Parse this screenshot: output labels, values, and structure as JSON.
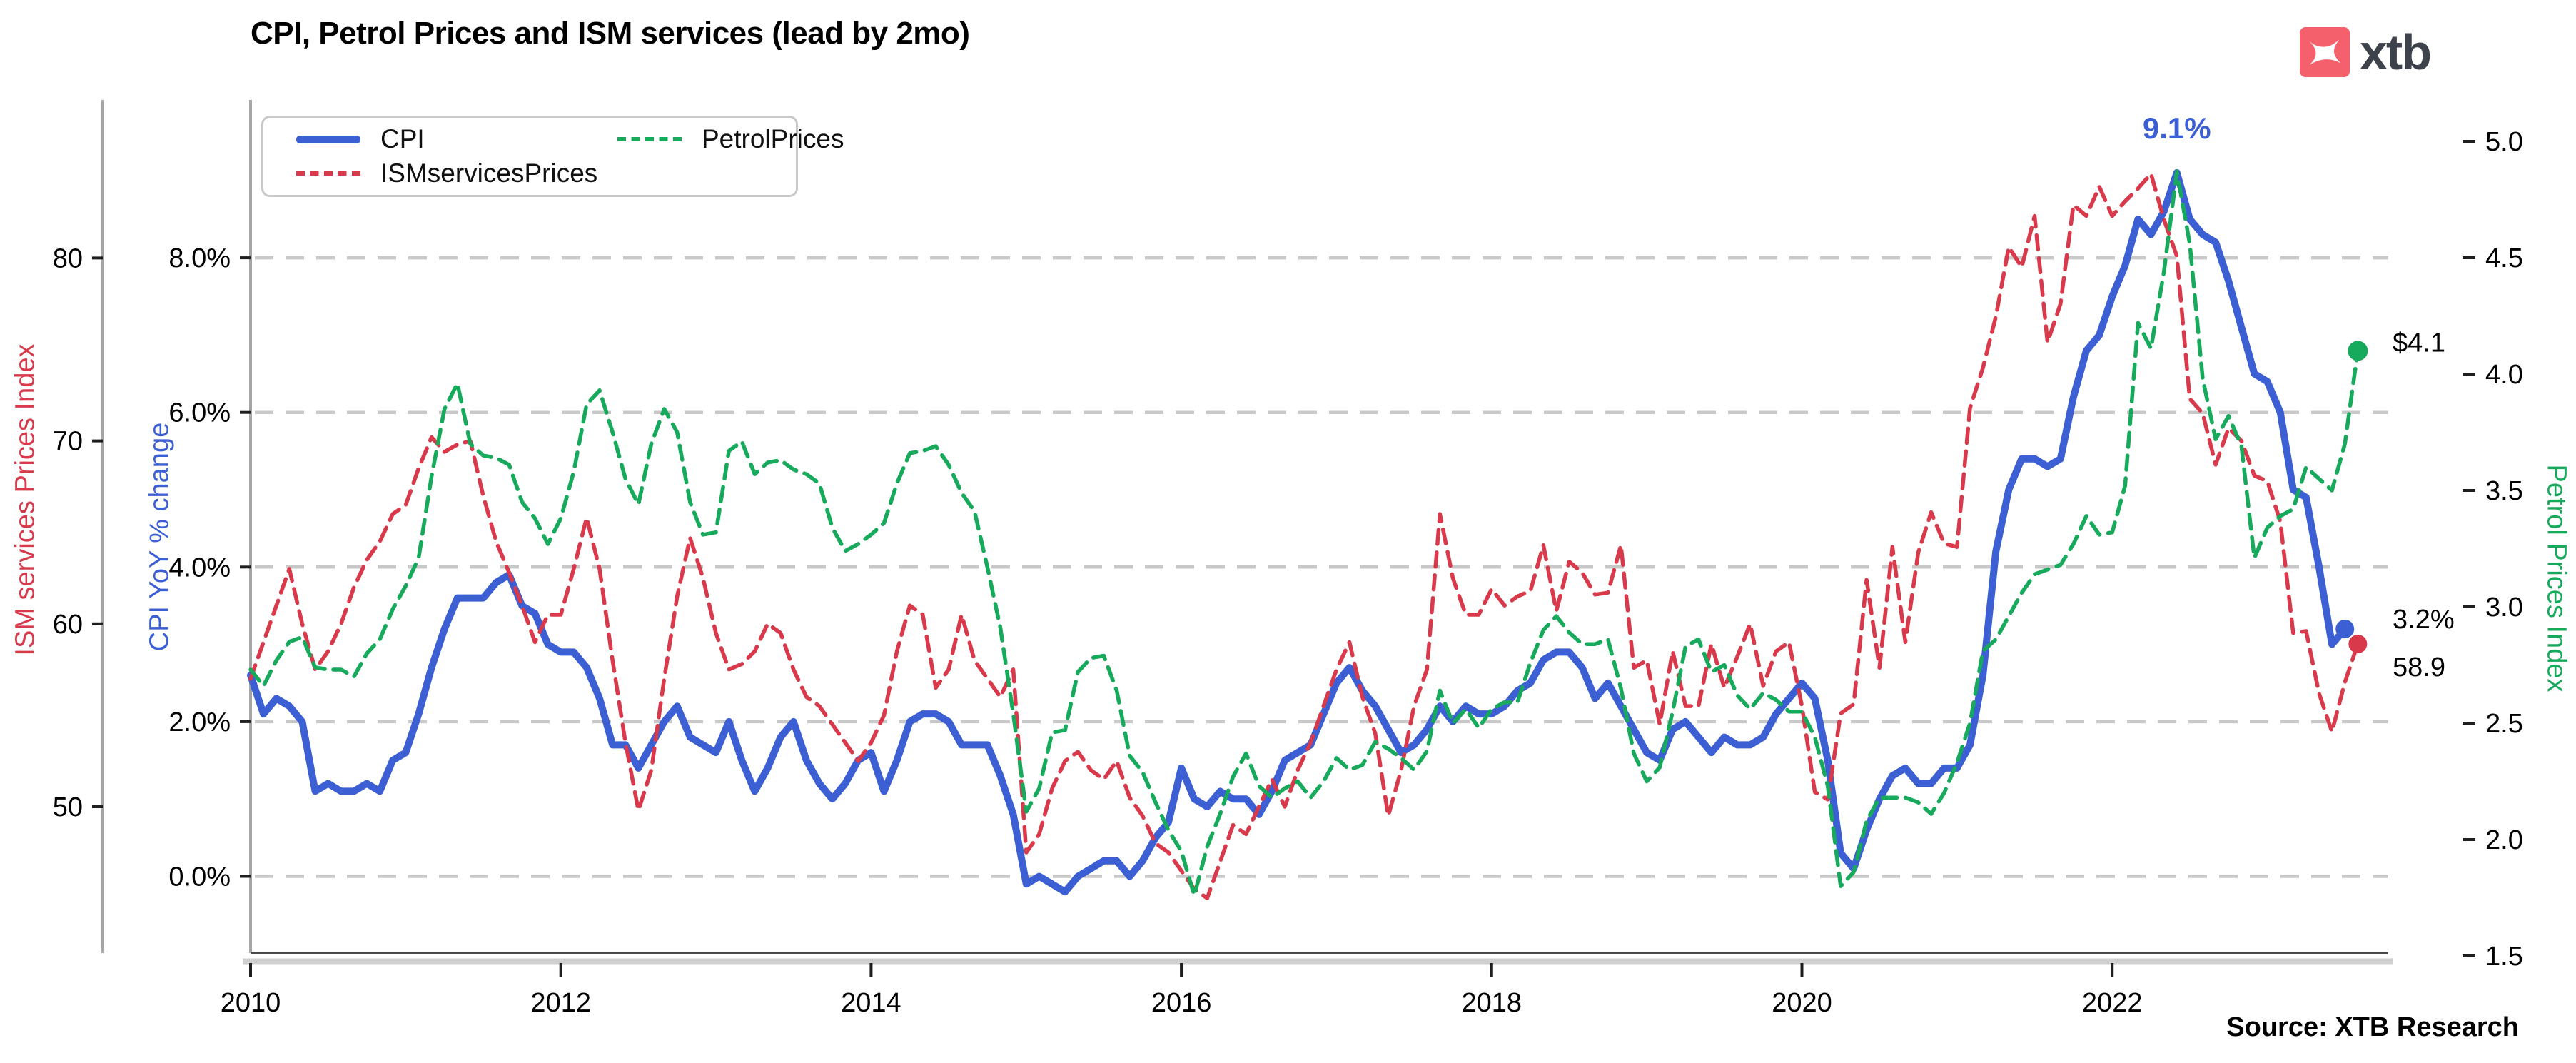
{
  "title": "CPI, Petrol Prices and ISM services (lead by 2mo)",
  "logo": {
    "text": "xtb",
    "square_color": "#F4606B",
    "text_color": "#3E434B"
  },
  "source_note": "Source: XTB Research",
  "colors": {
    "cpi": "#3C5FD3",
    "ism": "#D83A4C",
    "petrol": "#17A95C",
    "grid": "#C8C8C8",
    "spine": "#A6A6A6",
    "spine_bottom_dark": "#4A4A4A",
    "spine_bottom_light": "#CFCFCF",
    "tick": "#1F1F1F",
    "tick_label": "#000000"
  },
  "legend": {
    "items": [
      {
        "label": "CPI",
        "series": "cpi",
        "dashed": false
      },
      {
        "label": "ISMservicesPrices",
        "series": "ism",
        "dashed": true
      },
      {
        "label": "PetrolPrices",
        "series": "petrol",
        "dashed": true
      }
    ]
  },
  "annotations": {
    "cpi_peak": "9.1%",
    "petrol_end": "$4.1",
    "cpi_end": "3.2%",
    "ism_end": "58.9"
  },
  "chart_data": {
    "type": "line",
    "start": "2010-01",
    "frequency": "monthly",
    "x_axis": {
      "tick_labels": [
        "2010",
        "2012",
        "2014",
        "2016",
        "2018",
        "2020",
        "2022"
      ],
      "tick_years": [
        2010,
        2012,
        2014,
        2016,
        2018,
        2020,
        2022
      ]
    },
    "axes": {
      "cpi": {
        "label": "CPI YoY % change",
        "side": "left",
        "tick_labels": [
          "8.0%",
          "6.0%",
          "4.0%",
          "2.0%",
          "0.0%"
        ],
        "tick_values": [
          8,
          6,
          4,
          2,
          0
        ],
        "grid": true
      },
      "ism": {
        "label": "ISM services Prices Index",
        "side": "far-left",
        "tick_labels": [
          "80",
          "70",
          "60",
          "50"
        ],
        "tick_values": [
          80,
          70,
          60,
          50
        ],
        "grid": false
      },
      "petrol": {
        "label": "Petrol Prices Index",
        "side": "right",
        "tick_labels": [
          "5.0",
          "4.5",
          "4.0",
          "3.5",
          "3.0",
          "2.5",
          "2.0",
          "1.5"
        ],
        "tick_values": [
          5.0,
          4.5,
          4.0,
          3.5,
          3.0,
          2.5,
          2.0,
          1.5
        ],
        "grid": false
      }
    },
    "series": [
      {
        "name": "CPI",
        "axis": "cpi",
        "style": "solid",
        "end_dot": true,
        "values": [
          2.6,
          2.1,
          2.3,
          2.2,
          2.0,
          1.1,
          1.2,
          1.1,
          1.1,
          1.2,
          1.1,
          1.5,
          1.6,
          2.1,
          2.7,
          3.2,
          3.6,
          3.6,
          3.6,
          3.8,
          3.9,
          3.5,
          3.4,
          3.0,
          2.9,
          2.9,
          2.7,
          2.3,
          1.7,
          1.7,
          1.4,
          1.7,
          2.0,
          2.2,
          1.8,
          1.7,
          1.6,
          2.0,
          1.5,
          1.1,
          1.4,
          1.8,
          2.0,
          1.5,
          1.2,
          1.0,
          1.2,
          1.5,
          1.6,
          1.1,
          1.5,
          2.0,
          2.1,
          2.1,
          2.0,
          1.7,
          1.7,
          1.7,
          1.3,
          0.8,
          -0.1,
          0.0,
          -0.1,
          -0.2,
          0.0,
          0.1,
          0.2,
          0.2,
          0.0,
          0.2,
          0.5,
          0.7,
          1.4,
          1.0,
          0.9,
          1.1,
          1.0,
          1.0,
          0.8,
          1.1,
          1.5,
          1.6,
          1.7,
          2.1,
          2.5,
          2.7,
          2.4,
          2.2,
          1.9,
          1.6,
          1.7,
          1.9,
          2.2,
          2.0,
          2.2,
          2.1,
          2.1,
          2.2,
          2.4,
          2.5,
          2.8,
          2.9,
          2.9,
          2.7,
          2.3,
          2.5,
          2.2,
          1.9,
          1.6,
          1.5,
          1.9,
          2.0,
          1.8,
          1.6,
          1.8,
          1.7,
          1.7,
          1.8,
          2.1,
          2.3,
          2.5,
          2.3,
          1.5,
          0.3,
          0.1,
          0.6,
          1.0,
          1.3,
          1.4,
          1.2,
          1.2,
          1.4,
          1.4,
          1.7,
          2.6,
          4.2,
          5.0,
          5.4,
          5.4,
          5.3,
          5.4,
          6.2,
          6.8,
          7.0,
          7.5,
          7.9,
          8.5,
          8.3,
          8.6,
          9.1,
          8.5,
          8.3,
          8.2,
          7.7,
          7.1,
          6.5,
          6.4,
          6.0,
          5.0,
          4.9,
          4.0,
          3.0,
          3.2
        ]
      },
      {
        "name": "ISMservicesPrices",
        "axis": "ism",
        "style": "dashed",
        "end_dot": true,
        "values": [
          57.0,
          59.0,
          61.0,
          63.0,
          60.0,
          57.5,
          58.5,
          60.0,
          62.0,
          63.5,
          64.5,
          66.0,
          66.5,
          68.5,
          70.2,
          69.4,
          69.8,
          70.0,
          67.0,
          64.5,
          62.8,
          61.0,
          59.0,
          60.5,
          60.5,
          63.0,
          65.8,
          63.0,
          58.0,
          53.5,
          49.8,
          52.0,
          57.0,
          61.5,
          64.7,
          62.5,
          59.5,
          57.5,
          57.8,
          58.5,
          60.0,
          59.5,
          57.5,
          56.0,
          55.5,
          54.5,
          53.5,
          52.5,
          53.5,
          55.0,
          58.5,
          61.0,
          60.5,
          56.5,
          57.5,
          60.5,
          58.0,
          57.0,
          56.0,
          57.5,
          47.5,
          48.5,
          51.0,
          52.5,
          53.0,
          52.0,
          51.5,
          52.5,
          50.5,
          49.5,
          48.0,
          47.5,
          46.5,
          45.5,
          45.0,
          47.0,
          49.0,
          48.5,
          50.0,
          51.5,
          50.0,
          52.0,
          53.5,
          55.5,
          57.5,
          59.0,
          56.0,
          54.0,
          49.5,
          52.0,
          55.5,
          57.5,
          66.0,
          62.5,
          60.5,
          60.5,
          61.9,
          61.0,
          61.5,
          61.8,
          64.3,
          60.7,
          63.4,
          62.8,
          61.6,
          61.7,
          64.3,
          57.6,
          58.0,
          54.5,
          58.5,
          55.5,
          55.5,
          58.9,
          56.5,
          58.2,
          60.0,
          56.6,
          58.5,
          59.0,
          55.5,
          50.8,
          50.4,
          55.1,
          55.6,
          62.4,
          57.6,
          64.2,
          59.0,
          63.9,
          66.1,
          64.4,
          64.2,
          71.8,
          74.0,
          76.8,
          80.6,
          79.5,
          82.3,
          75.4,
          77.5,
          82.9,
          82.3,
          83.9,
          82.3,
          83.1,
          83.8,
          84.6,
          82.1,
          80.1,
          72.3,
          71.5,
          68.7,
          70.7,
          70.0,
          68.1,
          67.8,
          65.6,
          59.5,
          59.6,
          56.2,
          54.1,
          56.8,
          58.9
        ]
      },
      {
        "name": "PetrolPrices",
        "axis": "petrol",
        "style": "dashed",
        "end_dot": true,
        "values": [
          2.73,
          2.66,
          2.77,
          2.85,
          2.87,
          2.74,
          2.73,
          2.73,
          2.7,
          2.8,
          2.86,
          2.99,
          3.09,
          3.21,
          3.56,
          3.85,
          3.96,
          3.7,
          3.65,
          3.64,
          3.61,
          3.45,
          3.38,
          3.27,
          3.38,
          3.58,
          3.87,
          3.93,
          3.75,
          3.55,
          3.44,
          3.7,
          3.85,
          3.75,
          3.45,
          3.31,
          3.32,
          3.67,
          3.71,
          3.57,
          3.62,
          3.63,
          3.59,
          3.57,
          3.53,
          3.34,
          3.24,
          3.27,
          3.31,
          3.36,
          3.53,
          3.66,
          3.67,
          3.69,
          3.61,
          3.49,
          3.41,
          3.17,
          2.91,
          2.54,
          2.12,
          2.22,
          2.46,
          2.47,
          2.72,
          2.78,
          2.79,
          2.64,
          2.36,
          2.29,
          2.16,
          2.04,
          1.95,
          1.76,
          1.97,
          2.11,
          2.27,
          2.37,
          2.23,
          2.18,
          2.22,
          2.25,
          2.18,
          2.25,
          2.35,
          2.3,
          2.32,
          2.42,
          2.39,
          2.35,
          2.3,
          2.38,
          2.64,
          2.5,
          2.56,
          2.48,
          2.56,
          2.59,
          2.59,
          2.76,
          2.9,
          2.96,
          2.89,
          2.84,
          2.84,
          2.86,
          2.65,
          2.37,
          2.25,
          2.31,
          2.55,
          2.83,
          2.86,
          2.72,
          2.75,
          2.62,
          2.56,
          2.63,
          2.6,
          2.55,
          2.55,
          2.44,
          2.23,
          1.8,
          1.86,
          2.08,
          2.18,
          2.18,
          2.18,
          2.16,
          2.11,
          2.2,
          2.33,
          2.5,
          2.81,
          2.86,
          2.96,
          3.06,
          3.14,
          3.16,
          3.18,
          3.27,
          3.39,
          3.31,
          3.32,
          3.52,
          4.22,
          4.11,
          4.44,
          4.87,
          4.56,
          3.98,
          3.72,
          3.82,
          3.69,
          3.21,
          3.34,
          3.39,
          3.42,
          3.6,
          3.55,
          3.5,
          3.7,
          4.1
        ]
      }
    ]
  }
}
